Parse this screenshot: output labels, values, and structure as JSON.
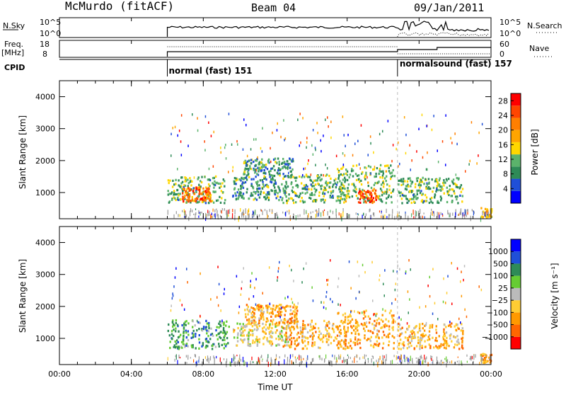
{
  "header": {
    "station": "McMurdo (fitACF)",
    "beam": "Beam 04",
    "date": "09/Jan/2011"
  },
  "top_panels": {
    "nsky_label": "N.Sky",
    "nsky_ticks": [
      "10^5",
      "10^0"
    ],
    "nsearch_label": "N.Search",
    "freq_label": "Freq.",
    "freq_unit": "[MHz]",
    "freq_ticks": [
      "18",
      "8"
    ],
    "nave_label": "Nave",
    "nave_ticks": [
      "60",
      "0"
    ],
    "cpid_label": "CPID",
    "modes": [
      {
        "label": "normal (fast) 151",
        "start_hour": 6.0
      },
      {
        "label": "normalsound (fast) 157",
        "start_hour": 18.8
      }
    ]
  },
  "x_axis": {
    "title": "Time UT",
    "ticks": [
      "00:00",
      "04:00",
      "08:00",
      "12:00",
      "16:00",
      "20:00",
      "00:00"
    ],
    "tick_hours": [
      0,
      4,
      8,
      12,
      16,
      20,
      24
    ]
  },
  "colors": {
    "power_scale": [
      "#0000ff",
      "#1f4fd8",
      "#2e8b57",
      "#5bb36b",
      "#ffd700",
      "#ffa500",
      "#ff7f00",
      "#ff4500",
      "#ff0000"
    ],
    "velocity_scale": [
      "#0000ff",
      "#1f4fd8",
      "#2e8b57",
      "#66cc33",
      "#bbbbbb",
      "#ffcc33",
      "#ff9900",
      "#ff6600",
      "#ff0000"
    ],
    "ground_scatter": "#999999"
  },
  "chart_data": [
    {
      "type": "heatmap",
      "name": "power",
      "ylabel": "Slant Range [km]",
      "yticks": [
        "1000",
        "2000",
        "3000",
        "4000"
      ],
      "ylim": [
        180,
        4500
      ],
      "xlim": [
        0,
        24
      ],
      "colorbar_label": "Power [dB]",
      "colorbar_ticks": [
        "4",
        "8",
        "12",
        "16",
        "20",
        "24",
        "28"
      ],
      "colorbar_range": [
        0,
        30
      ],
      "blobs": [
        {
          "h0": 6.0,
          "h1": 9.2,
          "r0": 700,
          "r1": 1550,
          "lvl": 0.35
        },
        {
          "h0": 6.8,
          "h1": 8.4,
          "r0": 750,
          "r1": 1200,
          "lvl": 0.8
        },
        {
          "h0": 9.6,
          "h1": 12.6,
          "r0": 800,
          "r1": 1500,
          "lvl": 0.3
        },
        {
          "h0": 10.2,
          "h1": 13.0,
          "r0": 1500,
          "r1": 2100,
          "lvl": 0.3
        },
        {
          "h0": 12.4,
          "h1": 16.0,
          "r0": 700,
          "r1": 1600,
          "lvl": 0.35
        },
        {
          "h0": 15.4,
          "h1": 18.6,
          "r0": 700,
          "r1": 1900,
          "lvl": 0.4
        },
        {
          "h0": 16.6,
          "h1": 17.6,
          "r0": 700,
          "r1": 1100,
          "lvl": 0.85
        },
        {
          "h0": 18.8,
          "h1": 22.4,
          "r0": 700,
          "r1": 1500,
          "lvl": 0.35
        },
        {
          "h0": 23.4,
          "h1": 24.0,
          "r0": 250,
          "r1": 550,
          "lvl": 0.55
        }
      ]
    },
    {
      "type": "heatmap",
      "name": "velocity",
      "ylabel": "Slant Range [km]",
      "yticks": [
        "1000",
        "2000",
        "3000",
        "4000"
      ],
      "ylim": [
        180,
        4500
      ],
      "xlim": [
        0,
        24
      ],
      "colorbar_label": "Velocity [m s⁻¹]",
      "colorbar_ticks": [
        "1000",
        "500",
        "100",
        "25",
        "−25",
        "−100",
        "−500",
        "−1000"
      ],
      "blobs": [
        {
          "h0": 6.0,
          "h1": 9.4,
          "r0": 700,
          "r1": 1600,
          "lvl": 0.3
        },
        {
          "h0": 9.6,
          "h1": 12.8,
          "r0": 800,
          "r1": 1500,
          "lvl": 0.55
        },
        {
          "h0": 10.2,
          "h1": 13.2,
          "r0": 1500,
          "r1": 2100,
          "lvl": 0.7
        },
        {
          "h0": 12.4,
          "h1": 16.0,
          "r0": 700,
          "r1": 1600,
          "lvl": 0.7
        },
        {
          "h0": 15.4,
          "h1": 18.6,
          "r0": 700,
          "r1": 1900,
          "lvl": 0.72
        },
        {
          "h0": 18.8,
          "h1": 22.4,
          "r0": 700,
          "r1": 1500,
          "lvl": 0.68
        },
        {
          "h0": 23.4,
          "h1": 24.0,
          "r0": 250,
          "r1": 550,
          "lvl": 0.75
        }
      ]
    }
  ]
}
